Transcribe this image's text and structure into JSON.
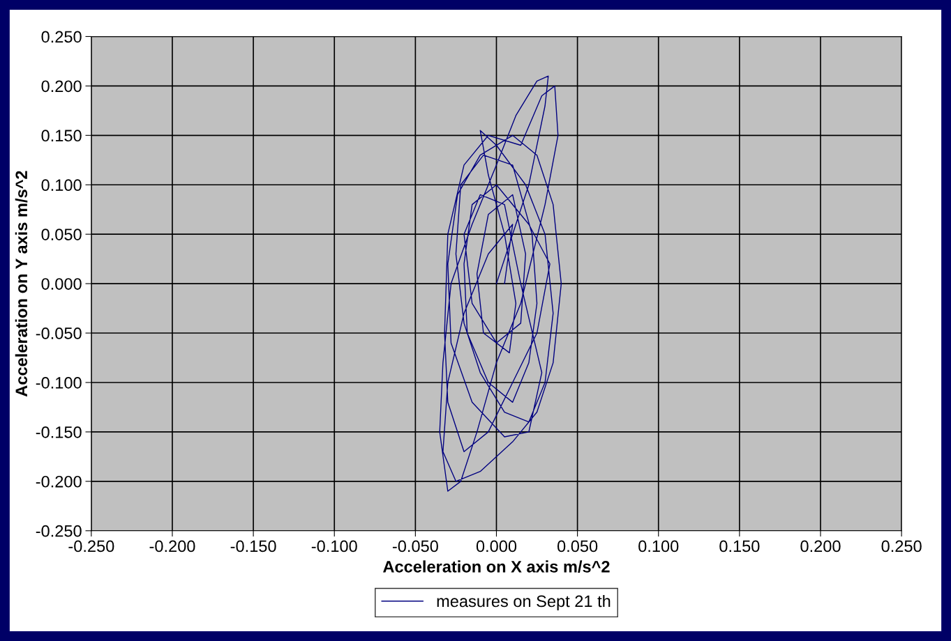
{
  "chart_data": {
    "type": "line",
    "xlabel": "Acceleration on X axis m/s^2",
    "ylabel": "Acceleration on Y axis m/s^2",
    "xlim": [
      -0.25,
      0.25
    ],
    "xticks": [
      {
        "value": -0.25,
        "label": "-0.250"
      },
      {
        "value": -0.2,
        "label": "-0.200"
      },
      {
        "value": -0.15,
        "label": "-0.150"
      },
      {
        "value": -0.1,
        "label": "-0.100"
      },
      {
        "value": -0.05,
        "label": "-0.050"
      },
      {
        "value": 0,
        "label": "0.000"
      },
      {
        "value": 0.05,
        "label": "0.050"
      },
      {
        "value": 0.1,
        "label": "0.100"
      },
      {
        "value": 0.15,
        "label": "0.150"
      },
      {
        "value": 0.2,
        "label": "0.200"
      },
      {
        "value": 0.25,
        "label": "0.250"
      }
    ],
    "ylim": [
      -0.25,
      0.25
    ],
    "yticks": [
      {
        "value": -0.25,
        "label": "-0.250"
      },
      {
        "value": -0.2,
        "label": "-0.200"
      },
      {
        "value": -0.15,
        "label": "-0.150"
      },
      {
        "value": -0.1,
        "label": "-0.100"
      },
      {
        "value": -0.05,
        "label": "-0.050"
      },
      {
        "value": 0,
        "label": "0.000"
      },
      {
        "value": 0.05,
        "label": "0.050"
      },
      {
        "value": 0.1,
        "label": "0.100"
      },
      {
        "value": 0.15,
        "label": "0.150"
      },
      {
        "value": 0.2,
        "label": "0.200"
      },
      {
        "value": 0.25,
        "label": "0.250"
      }
    ],
    "grid": true,
    "legend": "bottom",
    "marker": "none",
    "line_style": "solid",
    "series": [
      {
        "name": "measures on Sept 21 th",
        "color": "#000080",
        "x": [
          0.0,
          0.02,
          0.03,
          0.032,
          0.025,
          0.012,
          0.0,
          -0.015,
          -0.028,
          -0.033,
          -0.035,
          -0.03,
          -0.022,
          -0.012,
          0.0,
          0.015,
          0.03,
          0.038,
          0.036,
          0.028,
          0.015,
          -0.005,
          -0.02,
          -0.03,
          -0.032,
          -0.03,
          -0.02,
          -0.005,
          0.01,
          0.025,
          0.033,
          0.02,
          0.0,
          -0.015,
          -0.02,
          -0.018,
          -0.005,
          0.01,
          0.02,
          0.025,
          0.022,
          0.01,
          -0.008,
          -0.022,
          -0.025,
          -0.02,
          -0.01,
          0.005,
          0.02,
          0.03,
          0.035,
          0.03,
          0.018,
          0.0,
          -0.01,
          -0.005,
          0.005,
          0.012,
          0.008,
          -0.008,
          -0.012,
          -0.005,
          0.01,
          0.018,
          0.015,
          0.0,
          -0.015,
          -0.02,
          -0.01,
          0.005,
          0.015,
          0.028,
          0.02,
          0.005,
          -0.015,
          -0.028,
          -0.03,
          -0.024,
          -0.01,
          0.01,
          0.025,
          0.035,
          0.04,
          0.035,
          0.025,
          0.01,
          -0.01,
          -0.025,
          -0.033,
          -0.03,
          -0.02,
          -0.005,
          0.01,
          0.005
        ],
        "values": [
          0.0,
          0.1,
          0.18,
          0.21,
          0.205,
          0.17,
          0.12,
          0.06,
          0.0,
          -0.08,
          -0.15,
          -0.21,
          -0.2,
          -0.15,
          -0.08,
          -0.02,
          0.08,
          0.15,
          0.2,
          0.19,
          0.14,
          0.15,
          0.12,
          0.05,
          -0.05,
          -0.12,
          -0.17,
          -0.15,
          -0.1,
          -0.05,
          0.02,
          0.06,
          0.1,
          0.08,
          0.02,
          -0.05,
          -0.1,
          -0.12,
          -0.08,
          -0.02,
          0.05,
          0.12,
          0.13,
          0.1,
          0.03,
          -0.04,
          -0.09,
          -0.13,
          -0.14,
          -0.1,
          -0.03,
          0.05,
          0.1,
          0.14,
          0.155,
          0.11,
          0.05,
          -0.02,
          -0.07,
          -0.05,
          0.01,
          0.07,
          0.09,
          0.03,
          -0.04,
          -0.06,
          -0.02,
          0.05,
          0.09,
          0.08,
          0.0,
          -0.09,
          -0.15,
          -0.155,
          -0.12,
          -0.06,
          0.02,
          0.09,
          0.13,
          0.15,
          0.13,
          0.08,
          0.0,
          -0.08,
          -0.13,
          -0.16,
          -0.19,
          -0.2,
          -0.17,
          -0.1,
          -0.03,
          0.03,
          0.06,
          0.0
        ]
      }
    ]
  }
}
